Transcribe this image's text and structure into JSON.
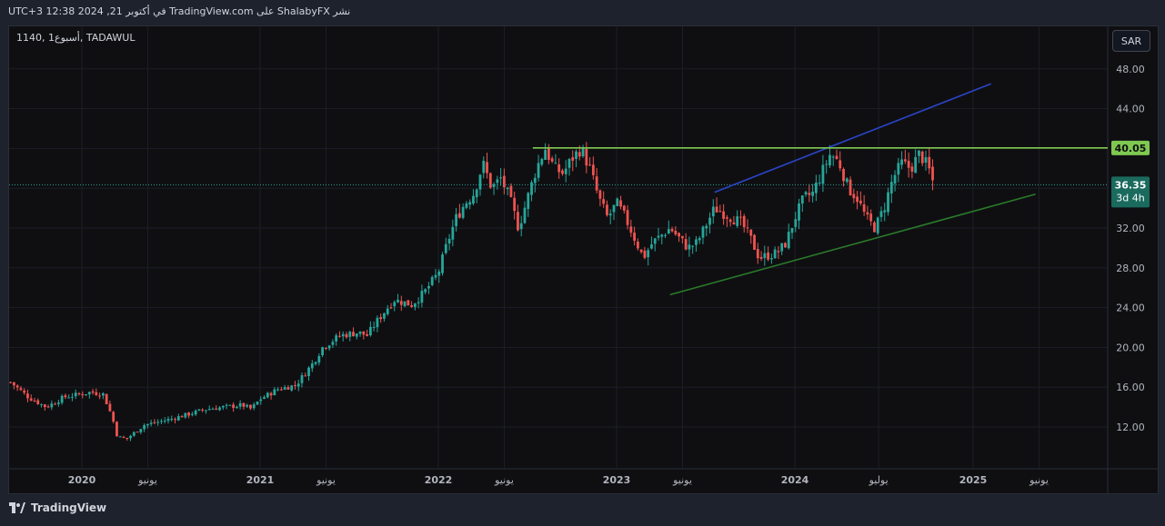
{
  "header": {
    "publish_text": "UTC+3 في أكتوبر 21, 2024 12:38 TradingView.com على ShalabyFX نشر",
    "symbol_text": "1140, أسبوع1, TADAWUL",
    "currency_button": "SAR"
  },
  "footer": {
    "brand": "TradingView"
  },
  "colors": {
    "up": "#26a69a",
    "down": "#ef5350",
    "resistance": "#7ec850",
    "upper_channel": "#2a45c8",
    "lower_channel": "#2a7a2a",
    "price_line": "#26a69a"
  },
  "chart_data": {
    "type": "candlestick",
    "title": "",
    "symbol": "1140",
    "exchange": "TADAWUL",
    "interval": "أسبوع1",
    "currency": "SAR",
    "ylim": [
      8,
      50
    ],
    "y_ticks": [
      "48.00",
      "44.00",
      "40.00",
      "36.00",
      "32.00",
      "28.00",
      "24.00",
      "20.00",
      "16.00",
      "12.00"
    ],
    "y_tick_values": [
      48,
      44,
      40,
      36,
      32,
      28,
      24,
      20,
      16,
      12
    ],
    "x_ticks": [
      {
        "label": "2020",
        "t": 2020.0,
        "bold": true
      },
      {
        "label": "يونيو",
        "t": 2020.37,
        "bold": false
      },
      {
        "label": "2021",
        "t": 2021.0,
        "bold": true
      },
      {
        "label": "يونيو",
        "t": 2021.37,
        "bold": false
      },
      {
        "label": "2022",
        "t": 2022.0,
        "bold": true
      },
      {
        "label": "يونيو",
        "t": 2022.37,
        "bold": false
      },
      {
        "label": "2023",
        "t": 2023.0,
        "bold": true
      },
      {
        "label": "يونيو",
        "t": 2023.37,
        "bold": false
      },
      {
        "label": "2024",
        "t": 2024.0,
        "bold": true
      },
      {
        "label": "يوليو",
        "t": 2024.47,
        "bold": false
      },
      {
        "label": "2025",
        "t": 2025.0,
        "bold": true
      },
      {
        "label": "يونيو",
        "t": 2025.37,
        "bold": false
      }
    ],
    "xlim": [
      2019.6,
      2026.25
    ],
    "price_series": [
      [
        2019.6,
        16.5
      ],
      [
        2019.7,
        15.0
      ],
      [
        2019.8,
        14.0
      ],
      [
        2019.9,
        15.0
      ],
      [
        2020.05,
        15.5
      ],
      [
        2020.12,
        15.3
      ],
      [
        2020.17,
        13.0
      ],
      [
        2020.2,
        11.0
      ],
      [
        2020.25,
        10.8
      ],
      [
        2020.35,
        12.2
      ],
      [
        2020.5,
        12.8
      ],
      [
        2020.7,
        13.8
      ],
      [
        2020.9,
        14.2
      ],
      [
        2020.95,
        13.8
      ],
      [
        2021.0,
        14.8
      ],
      [
        2021.1,
        15.8
      ],
      [
        2021.2,
        16.2
      ],
      [
        2021.3,
        18.5
      ],
      [
        2021.35,
        20.0
      ],
      [
        2021.45,
        21.2
      ],
      [
        2021.55,
        21.5
      ],
      [
        2021.6,
        21.2
      ],
      [
        2021.65,
        22.5
      ],
      [
        2021.75,
        24.8
      ],
      [
        2021.85,
        24.3
      ],
      [
        2021.92,
        25.5
      ],
      [
        2022.0,
        27.5
      ],
      [
        2022.05,
        30.5
      ],
      [
        2022.1,
        33.0
      ],
      [
        2022.15,
        34.5
      ],
      [
        2022.2,
        35.5
      ],
      [
        2022.25,
        38.5
      ],
      [
        2022.3,
        36.0
      ],
      [
        2022.35,
        37.0
      ],
      [
        2022.4,
        35.0
      ],
      [
        2022.45,
        32.0
      ],
      [
        2022.5,
        35.0
      ],
      [
        2022.55,
        38.0
      ],
      [
        2022.6,
        40.0
      ],
      [
        2022.65,
        38.0
      ],
      [
        2022.7,
        37.5
      ],
      [
        2022.75,
        39.0
      ],
      [
        2022.8,
        40.0
      ],
      [
        2022.85,
        38.0
      ],
      [
        2022.9,
        35.0
      ],
      [
        2022.95,
        33.0
      ],
      [
        2023.0,
        34.5
      ],
      [
        2023.05,
        33.0
      ],
      [
        2023.1,
        31.0
      ],
      [
        2023.15,
        29.0
      ],
      [
        2023.2,
        30.5
      ],
      [
        2023.3,
        32.0
      ],
      [
        2023.4,
        30.0
      ],
      [
        2023.45,
        30.5
      ],
      [
        2023.55,
        34.0
      ],
      [
        2023.6,
        33.5
      ],
      [
        2023.7,
        32.5
      ],
      [
        2023.75,
        31.0
      ],
      [
        2023.8,
        29.0
      ],
      [
        2023.9,
        29.5
      ],
      [
        2023.95,
        30.5
      ],
      [
        2024.0,
        33.0
      ],
      [
        2024.05,
        35.0
      ],
      [
        2024.1,
        35.5
      ],
      [
        2024.15,
        37.5
      ],
      [
        2024.2,
        39.5
      ],
      [
        2024.25,
        38.5
      ],
      [
        2024.3,
        36.0
      ],
      [
        2024.35,
        35.0
      ],
      [
        2024.4,
        33.0
      ],
      [
        2024.45,
        32.0
      ],
      [
        2024.5,
        34.0
      ],
      [
        2024.55,
        37.0
      ],
      [
        2024.6,
        38.5
      ],
      [
        2024.65,
        38.0
      ],
      [
        2024.7,
        39.5
      ],
      [
        2024.75,
        38.0
      ],
      [
        2024.78,
        36.35
      ]
    ],
    "current_price": "36.35",
    "countdown": "3d 4h",
    "resistance_level": "40.05",
    "trendlines": [
      {
        "name": "upper_channel",
        "from": [
          2023.55,
          35.6
        ],
        "to": [
          2025.1,
          46.5
        ]
      },
      {
        "name": "lower_channel",
        "from": [
          2023.3,
          25.3
        ],
        "to": [
          2025.35,
          35.4
        ]
      },
      {
        "name": "resistance",
        "from": [
          2022.53,
          40.05
        ],
        "to": [
          2026.25,
          40.05
        ]
      }
    ],
    "grid": true,
    "legend": "none"
  }
}
